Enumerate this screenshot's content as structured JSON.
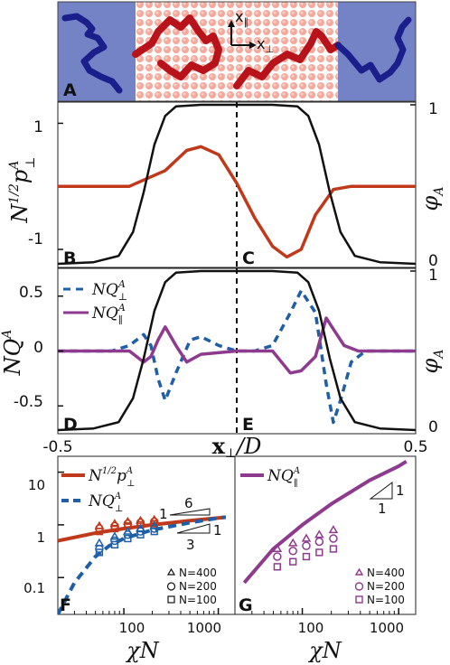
{
  "chart_data": [
    {
      "panel": "A",
      "type": "other",
      "letter": "A",
      "axis_labels": {
        "x": "x",
        "x_sub": "⊥",
        "y": "x",
        "y_sub": "∥"
      },
      "colors": {
        "B_region": "#6f7fc4",
        "A_region": "#f09a8c",
        "B_chain": "#1b1f8c",
        "A_chain": "#b8121a"
      }
    },
    {
      "panel": "B/C",
      "type": "line",
      "letters": [
        "B",
        "C"
      ],
      "xlim": [
        -0.5,
        0.5
      ],
      "ylim_left": [
        -1.2,
        1.25
      ],
      "ylim_right": [
        0,
        1
      ],
      "ylabel_left": {
        "main": "N",
        "sup": "1/2",
        "p": "p",
        "p_sup": "A",
        "p_sub": "⊥"
      },
      "ylabel_right": {
        "main": "φ",
        "sub": "A"
      },
      "yticks_left": [
        "1",
        "-1"
      ],
      "yticks_right": [
        "1",
        "0"
      ],
      "series": [
        {
          "axis": "left",
          "color": "#c0391b",
          "x": [
            -0.5,
            -0.3,
            -0.2,
            -0.14,
            -0.1,
            -0.05,
            0.0,
            0.05,
            0.1,
            0.14,
            0.18,
            0.22,
            0.27,
            0.32,
            0.5
          ],
          "y": [
            0.0,
            0.0,
            0.25,
            0.57,
            0.63,
            0.5,
            0.05,
            -0.5,
            -0.95,
            -1.12,
            -1.0,
            -0.45,
            -0.05,
            0.0,
            0.0
          ]
        },
        {
          "axis": "right",
          "color": "#111111",
          "x": [
            -0.5,
            -0.4,
            -0.33,
            -0.29,
            -0.26,
            -0.23,
            -0.2,
            -0.17,
            -0.1,
            0.1,
            0.17,
            0.2,
            0.23,
            0.26,
            0.29,
            0.33,
            0.4,
            0.5
          ],
          "y": [
            0.0,
            0.01,
            0.05,
            0.2,
            0.45,
            0.75,
            0.93,
            0.99,
            1.0,
            1.0,
            0.99,
            0.93,
            0.75,
            0.45,
            0.2,
            0.05,
            0.01,
            0.0
          ]
        }
      ]
    },
    {
      "panel": "D/E",
      "type": "line",
      "letters": [
        "D",
        "E"
      ],
      "xlim": [
        -0.5,
        0.5
      ],
      "ylim_left": [
        -0.72,
        0.72
      ],
      "ylim_right": [
        0,
        1
      ],
      "xlabel": {
        "main": "x",
        "sub": "⊥",
        "rest": "/D"
      },
      "xticks": [
        "-0.5",
        "0.5"
      ],
      "ylabel_left": {
        "main": "NQ",
        "sup": "A"
      },
      "ylabel_right": {
        "main": "φ",
        "sub": "A"
      },
      "yticks_left": [
        "0.5",
        "0",
        "-0.5"
      ],
      "yticks_right": [
        "1",
        "0"
      ],
      "legend": [
        {
          "main": "NQ",
          "sup": "A",
          "sub": "⊥",
          "color": "#1f5fa8",
          "dash": "8,6"
        },
        {
          "main": "NQ",
          "sup": "A",
          "sub": "∥",
          "color": "#8e3a8e",
          "dash": ""
        }
      ],
      "series": [
        {
          "axis": "left",
          "color": "#1f5fa8",
          "dash": "8,6",
          "x": [
            -0.5,
            -0.35,
            -0.3,
            -0.26,
            -0.24,
            -0.22,
            -0.2,
            -0.17,
            -0.13,
            -0.1,
            -0.05,
            0.0,
            0.05,
            0.1,
            0.15,
            0.18,
            0.22,
            0.25,
            0.27,
            0.29,
            0.32,
            0.36,
            0.5
          ],
          "y": [
            0.0,
            0.0,
            0.05,
            0.15,
            0.05,
            -0.25,
            -0.45,
            -0.2,
            0.1,
            0.13,
            0.05,
            0.0,
            0.0,
            0.05,
            0.35,
            0.55,
            0.35,
            -0.3,
            -0.65,
            -0.45,
            -0.1,
            0.0,
            0.0
          ]
        },
        {
          "axis": "left",
          "color": "#8e3a8e",
          "dash": "",
          "x": [
            -0.5,
            -0.3,
            -0.26,
            -0.24,
            -0.22,
            -0.2,
            -0.17,
            -0.14,
            -0.1,
            0.0,
            0.1,
            0.15,
            0.18,
            0.22,
            0.25,
            0.27,
            0.3,
            0.34,
            0.5
          ],
          "y": [
            0.0,
            0.0,
            -0.1,
            -0.05,
            0.1,
            0.22,
            0.05,
            -0.1,
            -0.03,
            0.0,
            0.0,
            -0.2,
            -0.18,
            -0.05,
            0.3,
            0.2,
            0.05,
            0.0,
            0.0
          ]
        },
        {
          "axis": "right",
          "color": "#111111",
          "dash": "",
          "x": [
            -0.5,
            -0.4,
            -0.33,
            -0.29,
            -0.26,
            -0.23,
            -0.2,
            -0.17,
            -0.1,
            0.1,
            0.17,
            0.2,
            0.23,
            0.26,
            0.29,
            0.33,
            0.4,
            0.5
          ],
          "y": [
            0.0,
            0.01,
            0.05,
            0.2,
            0.45,
            0.75,
            0.93,
            0.99,
            1.0,
            1.0,
            0.99,
            0.93,
            0.75,
            0.45,
            0.2,
            0.05,
            0.01,
            0.0
          ]
        }
      ]
    },
    {
      "panel": "F",
      "type": "scatter",
      "letter": "F",
      "xscale": "log",
      "yscale": "log",
      "xlim": [
        20,
        1500
      ],
      "ylim": [
        0.02,
        20
      ],
      "xlabel": "χN",
      "xticks": [
        "100",
        "1000"
      ],
      "yticks": [
        "10",
        "1",
        "0.1"
      ],
      "legend": [
        {
          "main": "N",
          "sup": "1/2",
          "p": "p",
          "p_sup": "A",
          "p_sub": "⊥",
          "color": "#c0391b"
        },
        {
          "main": "NQ",
          "sup": "A",
          "sub": "⊥",
          "color": "#1f5fa8"
        }
      ],
      "slope_labels": [
        "1",
        "6",
        "1",
        "3"
      ],
      "marker_legend": [
        "N=400",
        "N=200",
        "N=100"
      ],
      "series": [
        {
          "kind": "line",
          "color": "#c0391b",
          "x": [
            20,
            50,
            100,
            200,
            500,
            1000,
            1200
          ],
          "y": [
            0.5,
            0.7,
            0.85,
            1.0,
            1.2,
            1.35,
            1.4
          ]
        },
        {
          "kind": "dashed-line",
          "color": "#1f5fa8",
          "x": [
            20,
            30,
            50,
            70,
            100,
            200,
            500,
            1000,
            1200
          ],
          "y": [
            0.02,
            0.08,
            0.25,
            0.4,
            0.55,
            0.8,
            1.1,
            1.35,
            1.4
          ]
        },
        {
          "kind": "markers",
          "marker": "triangle",
          "color": "#c0391b",
          "x": [
            55,
            80,
            110,
            150,
            210
          ],
          "y": [
            0.95,
            1.05,
            1.15,
            1.2,
            1.25
          ]
        },
        {
          "kind": "markers",
          "marker": "circle",
          "color": "#c0391b",
          "x": [
            55,
            80,
            110,
            150,
            210
          ],
          "y": [
            0.85,
            0.95,
            1.05,
            1.1,
            1.15
          ]
        },
        {
          "kind": "markers",
          "marker": "square",
          "color": "#c0391b",
          "x": [
            55,
            80,
            110,
            150,
            210
          ],
          "y": [
            0.75,
            0.85,
            0.95,
            1.0,
            1.05
          ]
        },
        {
          "kind": "markers",
          "marker": "triangle",
          "color": "#1f5fa8",
          "x": [
            55,
            80,
            110,
            150,
            210
          ],
          "y": [
            0.45,
            0.6,
            0.75,
            0.85,
            0.95
          ]
        },
        {
          "kind": "markers",
          "marker": "circle",
          "color": "#1f5fa8",
          "x": [
            55,
            80,
            110,
            150,
            210
          ],
          "y": [
            0.35,
            0.5,
            0.65,
            0.75,
            0.85
          ]
        },
        {
          "kind": "markers",
          "marker": "square",
          "color": "#1f5fa8",
          "x": [
            55,
            80,
            110,
            150,
            210
          ],
          "y": [
            0.3,
            0.42,
            0.55,
            0.65,
            0.75
          ]
        }
      ]
    },
    {
      "panel": "G",
      "type": "scatter",
      "letter": "G",
      "xscale": "log",
      "yscale": "log",
      "xlim": [
        20,
        1500
      ],
      "ylim": [
        0.02,
        20
      ],
      "xlabel": "χN",
      "xticks": [
        "100",
        "1000"
      ],
      "legend": [
        {
          "main": "NQ",
          "sup": "A",
          "sub": "∥",
          "color": "#8e3a8e"
        }
      ],
      "slope_labels": [
        "1",
        "1"
      ],
      "marker_legend": [
        "N=400",
        "N=200",
        "N=100"
      ],
      "series": [
        {
          "kind": "line",
          "color": "#8e3a8e",
          "x": [
            25,
            50,
            100,
            200,
            500,
            1000,
            1200
          ],
          "y": [
            0.08,
            0.35,
            1.0,
            2.5,
            7.0,
            13.0,
            16.0
          ]
        },
        {
          "kind": "markers",
          "marker": "triangle",
          "color": "#8e3a8e",
          "x": [
            55,
            80,
            110,
            150,
            210
          ],
          "y": [
            0.35,
            0.45,
            0.55,
            0.65,
            0.8
          ]
        },
        {
          "kind": "markers",
          "marker": "circle",
          "color": "#8e3a8e",
          "x": [
            55,
            80,
            110,
            150,
            210
          ],
          "y": [
            0.25,
            0.32,
            0.4,
            0.48,
            0.55
          ]
        },
        {
          "kind": "markers",
          "marker": "square",
          "color": "#8e3a8e",
          "x": [
            55,
            80,
            110,
            150,
            210
          ],
          "y": [
            0.16,
            0.2,
            0.25,
            0.3,
            0.35
          ]
        }
      ]
    }
  ]
}
